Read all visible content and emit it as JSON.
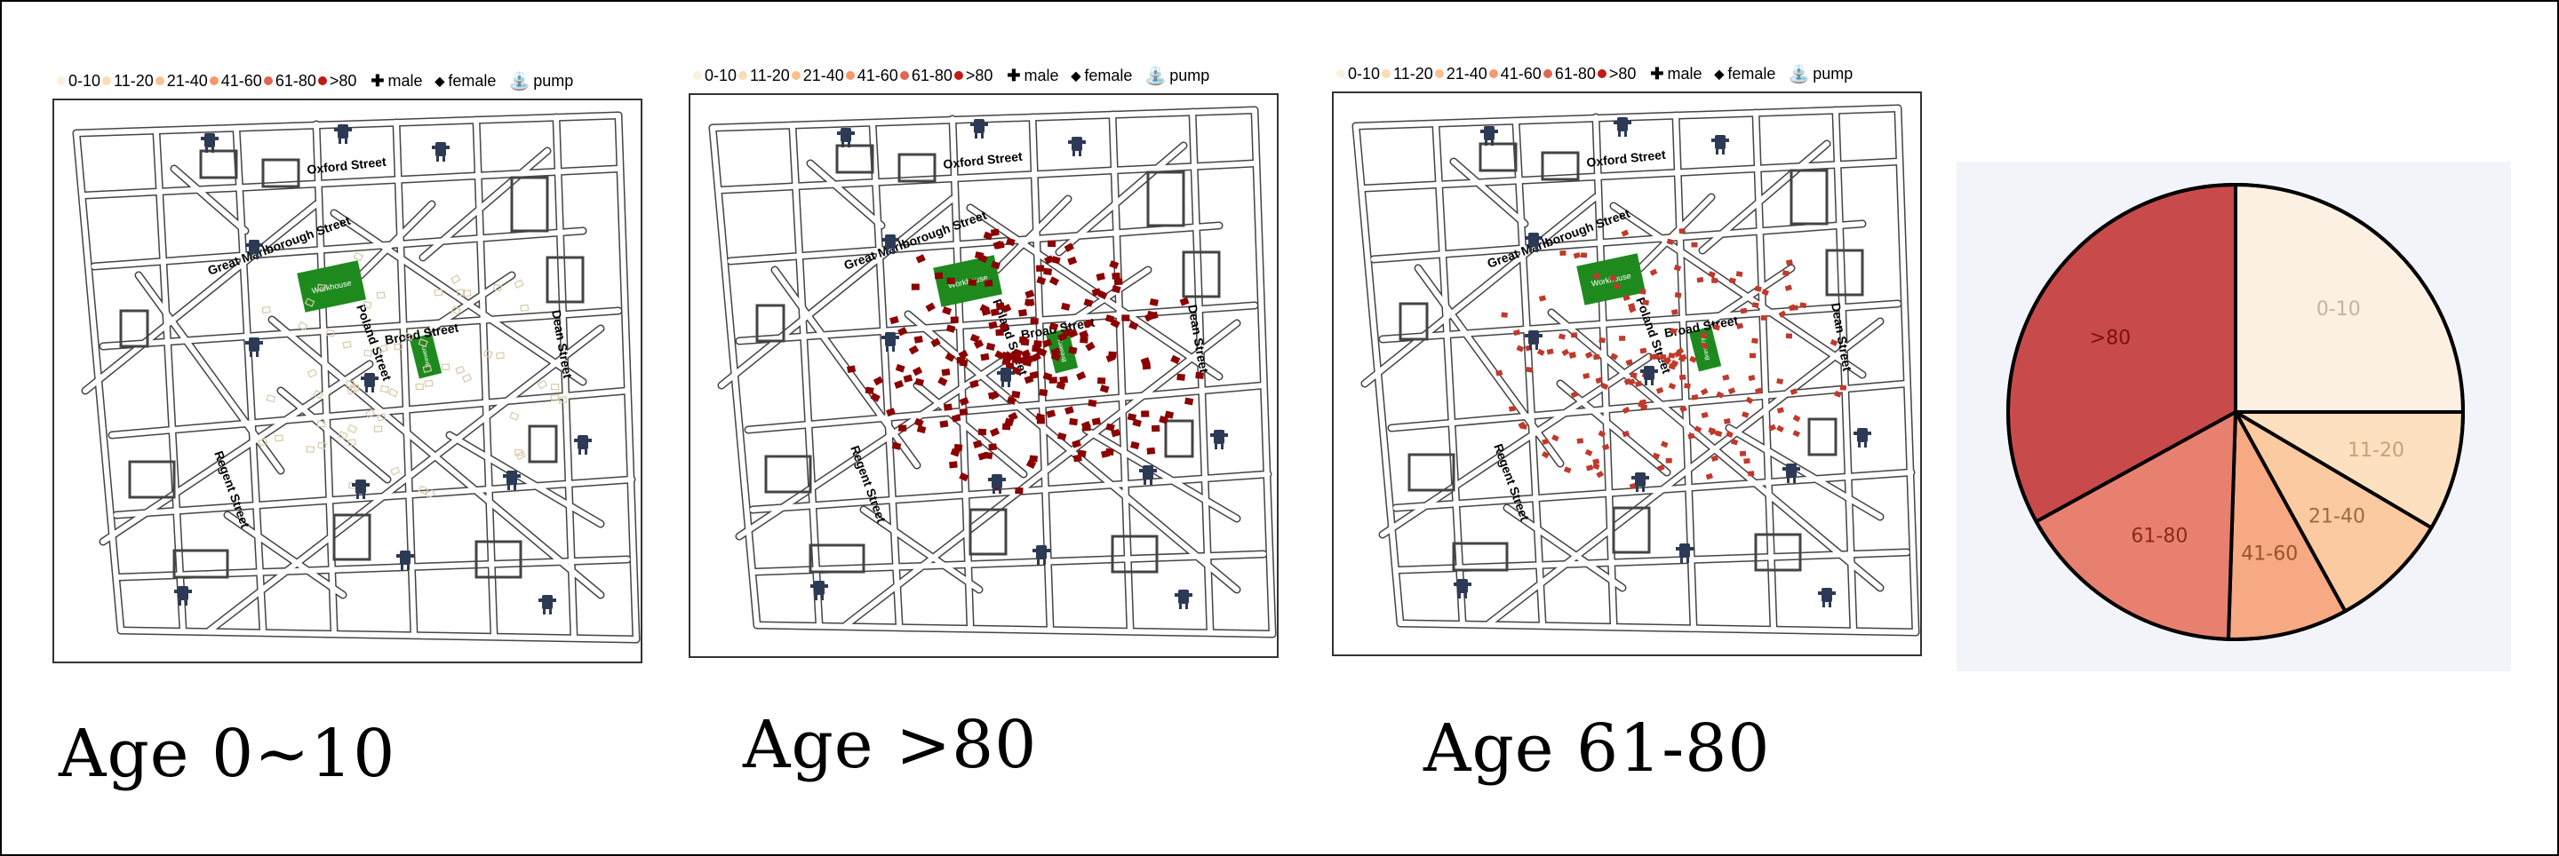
{
  "legend": {
    "items": [
      {
        "label": "0-10",
        "color": "#fbefe0"
      },
      {
        "label": "11-20",
        "color": "#fcdcb5"
      },
      {
        "label": "21-40",
        "color": "#f9c18c"
      },
      {
        "label": "41-60",
        "color": "#f4996e"
      },
      {
        "label": "61-80",
        "color": "#e06553"
      },
      {
        "label": ">80",
        "color": "#c31a14"
      }
    ],
    "male_label": "male",
    "female_label": "female",
    "pump_label": "pump"
  },
  "street_labels": {
    "oxford": "Oxford Street",
    "great_marlborough": "Great Marlborough Street",
    "poland": "Poland Street",
    "broad": "Broad Street",
    "dean": "Dean Street",
    "regent": "Regent Street",
    "workhouse": "Workhouse",
    "brewery": "Brewery"
  },
  "panels": [
    {
      "caption": "Age 0~10",
      "death_color": "#d9c9a8",
      "deaths": "light"
    },
    {
      "caption": "Age >80",
      "death_color": "#8b0000",
      "deaths": "heavy"
    },
    {
      "caption": "Age 61-80",
      "death_color": "#c0392b",
      "deaths": "medium"
    }
  ],
  "chart_data": {
    "type": "pie",
    "categories": [
      "0-10",
      "11-20",
      "21-40",
      "41-60",
      "61-80",
      ">80"
    ],
    "values": [
      25,
      8.5,
      8.5,
      8.5,
      16.5,
      33
    ],
    "colors": [
      "#fbf0e2",
      "#fce0c0",
      "#fbcaa1",
      "#f6a982",
      "#e88070",
      "#c94a4a"
    ],
    "label_colors": [
      "#c8b49a",
      "#c8a07a",
      "#9b6a40",
      "#9b5030",
      "#8a2a1a",
      "#7a1010"
    ]
  }
}
